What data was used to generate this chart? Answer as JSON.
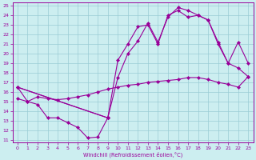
{
  "xlabel": "Windchill (Refroidissement éolien,°C)",
  "background_color": "#cceef0",
  "grid_color": "#99ccd4",
  "line_color": "#990099",
  "xlim": [
    -0.5,
    23.5
  ],
  "ylim": [
    10.7,
    25.3
  ],
  "xticks": [
    0,
    1,
    2,
    3,
    4,
    5,
    6,
    7,
    8,
    9,
    10,
    11,
    12,
    13,
    14,
    15,
    16,
    17,
    18,
    19,
    20,
    21,
    22,
    23
  ],
  "yticks": [
    11,
    12,
    13,
    14,
    15,
    16,
    17,
    18,
    19,
    20,
    21,
    22,
    23,
    24,
    25
  ],
  "line1_x": [
    0,
    1,
    2,
    3,
    4,
    5,
    6,
    7,
    8,
    9
  ],
  "line1_y": [
    16.5,
    15.0,
    14.7,
    13.3,
    13.3,
    12.8,
    12.3,
    11.2,
    11.3,
    13.3
  ],
  "line2_x": [
    0,
    1,
    2,
    3,
    4,
    5,
    6,
    7,
    8,
    9,
    10,
    11,
    12,
    13,
    14,
    15,
    16,
    17,
    18,
    19,
    20,
    21,
    22,
    23
  ],
  "line2_y": [
    15.3,
    15.0,
    15.5,
    15.3,
    15.2,
    15.3,
    15.5,
    15.7,
    16.0,
    16.3,
    16.5,
    16.7,
    16.8,
    17.0,
    17.1,
    17.2,
    17.3,
    17.5,
    17.5,
    17.3,
    17.0,
    16.8,
    16.5,
    17.6
  ],
  "line3_x": [
    0,
    9,
    10,
    11,
    12,
    13,
    14,
    15,
    16,
    17,
    18,
    19,
    20,
    21,
    22,
    23
  ],
  "line3_y": [
    16.5,
    13.3,
    17.5,
    20.0,
    21.3,
    23.2,
    21.2,
    23.8,
    24.8,
    24.5,
    24.0,
    23.5,
    21.2,
    19.0,
    21.2,
    19.0
  ],
  "line4_x": [
    0,
    9,
    10,
    11,
    12,
    13,
    14,
    15,
    16,
    17,
    18,
    19,
    20,
    21,
    22,
    23
  ],
  "line4_y": [
    16.5,
    13.3,
    19.3,
    21.0,
    22.8,
    23.0,
    21.0,
    24.0,
    24.5,
    23.8,
    24.0,
    23.5,
    21.0,
    19.0,
    18.5,
    17.6
  ]
}
